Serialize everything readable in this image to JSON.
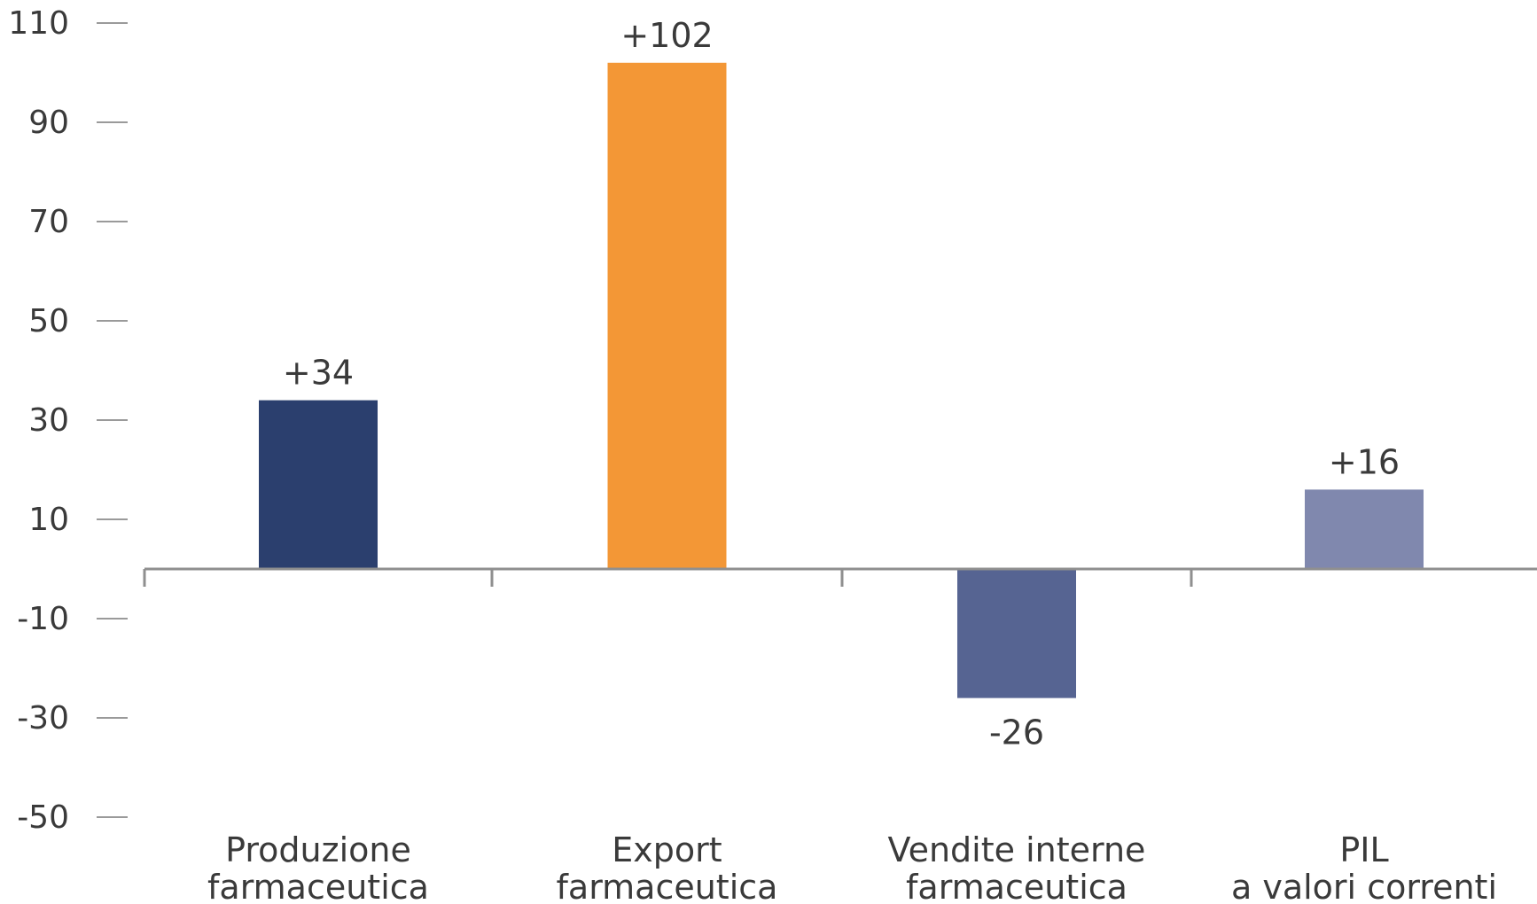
{
  "chart_data": {
    "type": "bar",
    "title": "",
    "xlabel": "",
    "ylabel": "",
    "ylim": [
      -50,
      110
    ],
    "yticks": [
      110,
      90,
      70,
      50,
      30,
      10,
      -10,
      -30,
      -50
    ],
    "ytick_labels": [
      "110",
      "90",
      "70",
      "50",
      "30",
      "10",
      "-10",
      "-30",
      "-50"
    ],
    "categories": [
      [
        "Produzione",
        "farmaceutica"
      ],
      [
        "Export",
        "farmaceutica"
      ],
      [
        "Vendite interne",
        "farmaceutica"
      ],
      [
        "PIL",
        "a valori correnti"
      ]
    ],
    "values": [
      34,
      102,
      -26,
      16
    ],
    "value_labels": [
      "+34",
      "+102",
      "-26",
      "+16"
    ],
    "colors": [
      "#2b3f6e",
      "#f39736",
      "#566492",
      "#8088ae"
    ],
    "grid": false,
    "legend": "none"
  }
}
